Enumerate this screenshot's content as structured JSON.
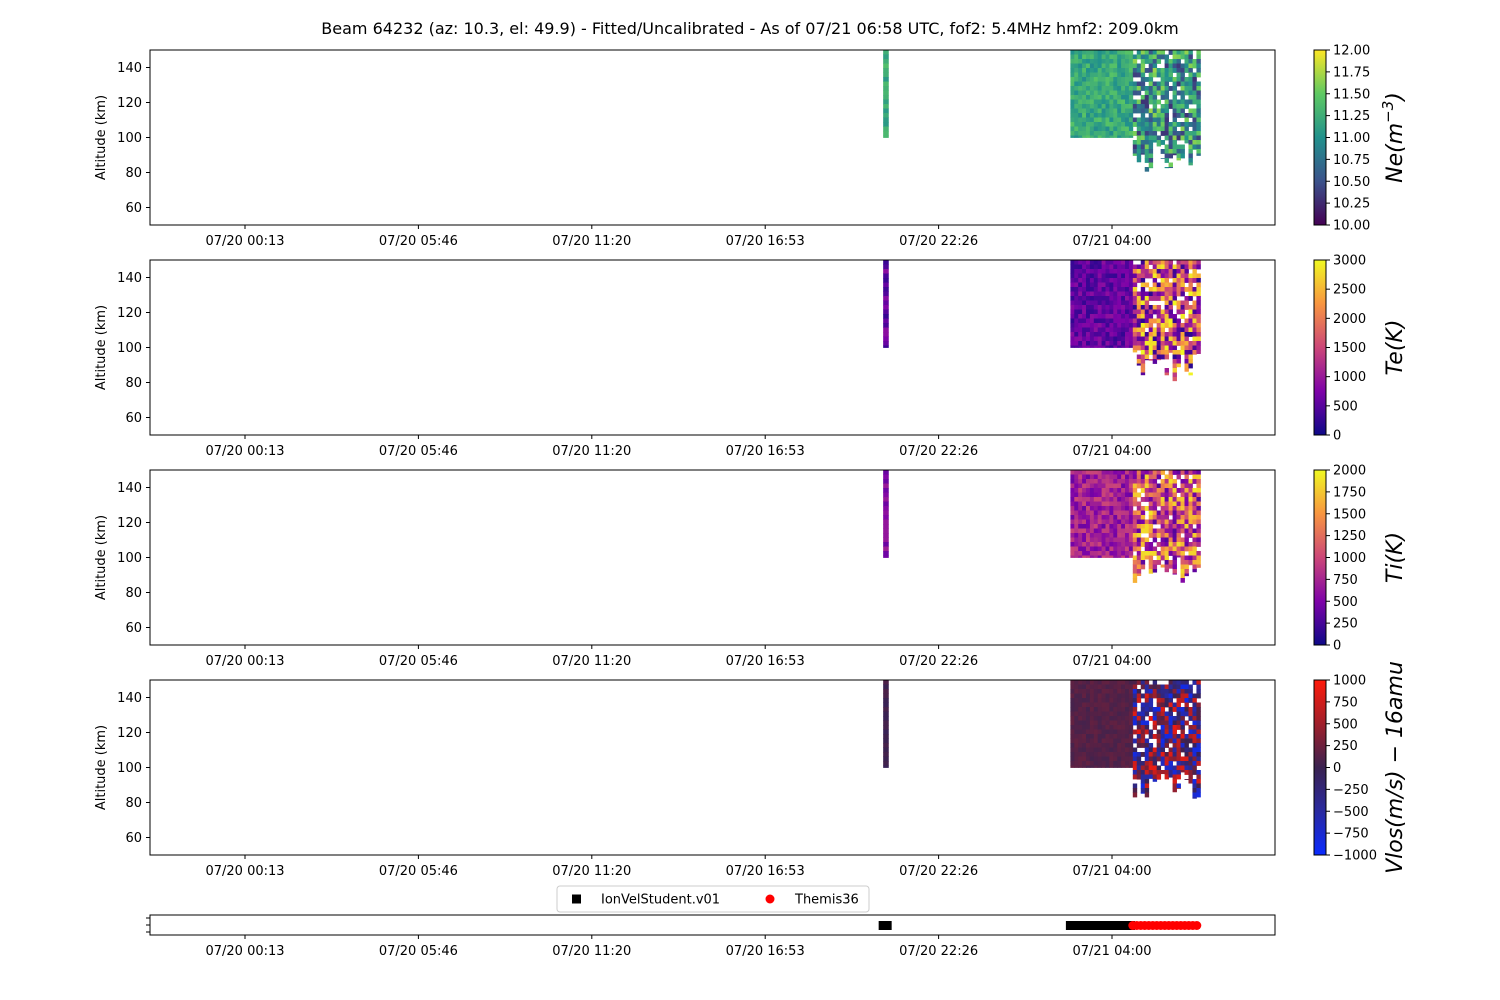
{
  "title": "Beam 64232 (az: 10.3, el: 49.9) - Fitted/Uncalibrated - As of 07/21 06:58 UTC, fof2: 5.4MHz  hmf2: 209.0km",
  "x_tick_labels": [
    "07/20 00:13",
    "07/20 05:46",
    "07/20 11:20",
    "07/20 16:53",
    "07/20 22:26",
    "07/21 04:00"
  ],
  "chart_data": [
    {
      "type": "heatmap",
      "title": "",
      "xlabel": "",
      "ylabel": "Altitude (km)",
      "ylim": [
        50,
        150
      ],
      "y_ticks": [
        60,
        80,
        100,
        120,
        140
      ],
      "x_tick_labels": [
        "07/20 00:13",
        "07/20 05:46",
        "07/20 11:20",
        "07/20 16:53",
        "07/20 22:26",
        "07/21 04:00"
      ],
      "colorbar": {
        "label_parts": [
          "Ne(m",
          "−3",
          ")"
        ],
        "colormap": "viridis",
        "range": [
          10.0,
          12.0
        ],
        "ticks": [
          "10.00",
          "10.25",
          "10.50",
          "10.75",
          "11.00",
          "11.25",
          "11.50",
          "11.75",
          "12.00"
        ],
        "colors": [
          "#440154",
          "#3b528b",
          "#21918c",
          "#5ec962",
          "#fde725"
        ]
      },
      "data_blocks": [
        {
          "x_start": "07/20 20:40",
          "x_end": "07/20 20:50",
          "alt_min": 100,
          "alt_max": 150,
          "value_low": 11.0,
          "value_high": 11.4
        },
        {
          "x_start": "07/21 02:40",
          "x_end": "07/21 04:40",
          "alt_min": 100,
          "alt_max": 150,
          "value_low": 10.95,
          "value_high": 11.45
        },
        {
          "x_start": "07/21 04:40",
          "x_end": "07/21 06:50",
          "alt_min": 80,
          "alt_max": 150,
          "value_low": 10.3,
          "value_high": 11.7
        }
      ]
    },
    {
      "type": "heatmap",
      "title": "",
      "xlabel": "",
      "ylabel": "Altitude (km)",
      "ylim": [
        50,
        150
      ],
      "y_ticks": [
        60,
        80,
        100,
        120,
        140
      ],
      "x_tick_labels": [
        "07/20 00:13",
        "07/20 05:46",
        "07/20 11:20",
        "07/20 16:53",
        "07/20 22:26",
        "07/21 04:00"
      ],
      "colorbar": {
        "label_parts": [
          "Te(K)"
        ],
        "colormap": "plasma",
        "range": [
          0,
          3000
        ],
        "ticks": [
          "0",
          "500",
          "1000",
          "1500",
          "2000",
          "2500",
          "3000"
        ],
        "colors": [
          "#0d0887",
          "#7e03a8",
          "#cc4778",
          "#f89540",
          "#f0f921"
        ]
      },
      "data_blocks": [
        {
          "x_start": "07/20 20:40",
          "x_end": "07/20 20:50",
          "alt_min": 100,
          "alt_max": 150,
          "value_low": 250,
          "value_high": 900
        },
        {
          "x_start": "07/21 02:40",
          "x_end": "07/21 04:40",
          "alt_min": 100,
          "alt_max": 150,
          "value_low": 250,
          "value_high": 900
        },
        {
          "x_start": "07/21 04:40",
          "x_end": "07/21 06:50",
          "alt_min": 80,
          "alt_max": 150,
          "value_low": 200,
          "value_high": 3000
        }
      ]
    },
    {
      "type": "heatmap",
      "title": "",
      "xlabel": "",
      "ylabel": "Altitude (km)",
      "ylim": [
        50,
        150
      ],
      "y_ticks": [
        60,
        80,
        100,
        120,
        140
      ],
      "x_tick_labels": [
        "07/20 00:13",
        "07/20 05:46",
        "07/20 11:20",
        "07/20 16:53",
        "07/20 22:26",
        "07/21 04:00"
      ],
      "colorbar": {
        "label_parts": [
          "Ti(K)"
        ],
        "colormap": "plasma",
        "range": [
          0,
          2000
        ],
        "ticks": [
          "0",
          "250",
          "500",
          "750",
          "1000",
          "1250",
          "1500",
          "1750",
          "2000"
        ],
        "colors": [
          "#0d0887",
          "#7e03a8",
          "#cc4778",
          "#f89540",
          "#f0f921"
        ]
      },
      "data_blocks": [
        {
          "x_start": "07/20 20:40",
          "x_end": "07/20 20:50",
          "alt_min": 100,
          "alt_max": 150,
          "value_low": 400,
          "value_high": 700
        },
        {
          "x_start": "07/21 02:40",
          "x_end": "07/21 04:40",
          "alt_min": 100,
          "alt_max": 150,
          "value_low": 400,
          "value_high": 1000
        },
        {
          "x_start": "07/21 04:40",
          "x_end": "07/21 06:50",
          "alt_min": 85,
          "alt_max": 150,
          "value_low": 300,
          "value_high": 1900
        }
      ]
    },
    {
      "type": "heatmap",
      "title": "",
      "xlabel": "",
      "ylabel": "Altitude (km)",
      "ylim": [
        50,
        150
      ],
      "y_ticks": [
        60,
        80,
        100,
        120,
        140
      ],
      "x_tick_labels": [
        "07/20 00:13",
        "07/20 05:46",
        "07/20 11:20",
        "07/20 16:53",
        "07/20 22:26",
        "07/21 04:00"
      ],
      "colorbar": {
        "label_parts": [
          "Vlos(m/s) − 16amu"
        ],
        "colormap": "bwr-dark",
        "range": [
          -1000,
          1000
        ],
        "ticks": [
          "−1000",
          "−750",
          "−500",
          "−250",
          "0",
          "250",
          "500",
          "750",
          "1000"
        ],
        "colors": [
          "#0a2bff",
          "#2a2aa0",
          "#3a2250",
          "#a01f2a",
          "#ff1a0a"
        ]
      },
      "data_blocks": [
        {
          "x_start": "07/20 20:40",
          "x_end": "07/20 20:50",
          "alt_min": 100,
          "alt_max": 150,
          "value_low": -50,
          "value_high": 100
        },
        {
          "x_start": "07/21 02:40",
          "x_end": "07/21 04:40",
          "alt_min": 100,
          "alt_max": 150,
          "value_low": 50,
          "value_high": 200
        },
        {
          "x_start": "07/21 04:40",
          "x_end": "07/21 06:50",
          "alt_min": 80,
          "alt_max": 150,
          "value_low": -900,
          "value_high": 900
        }
      ]
    },
    {
      "type": "scatter",
      "title": "",
      "xlabel": "",
      "ylabel": "",
      "x_tick_labels": [
        "07/20 00:13",
        "07/20 05:46",
        "07/20 11:20",
        "07/20 16:53",
        "07/20 22:26",
        "07/21 04:00"
      ],
      "legend_placement": "top-center",
      "series": [
        {
          "name": "IonVelStudent.v01",
          "marker": "square",
          "color": "#000000",
          "x_ranges": [
            [
              "07/20 20:40",
              "07/20 20:50"
            ],
            [
              "07/21 02:40",
              "07/21 04:40"
            ]
          ]
        },
        {
          "name": "Themis36",
          "marker": "circle",
          "color": "#ff0000",
          "x_ranges": [
            [
              "07/21 04:40",
              "07/21 06:50"
            ]
          ]
        }
      ]
    }
  ]
}
